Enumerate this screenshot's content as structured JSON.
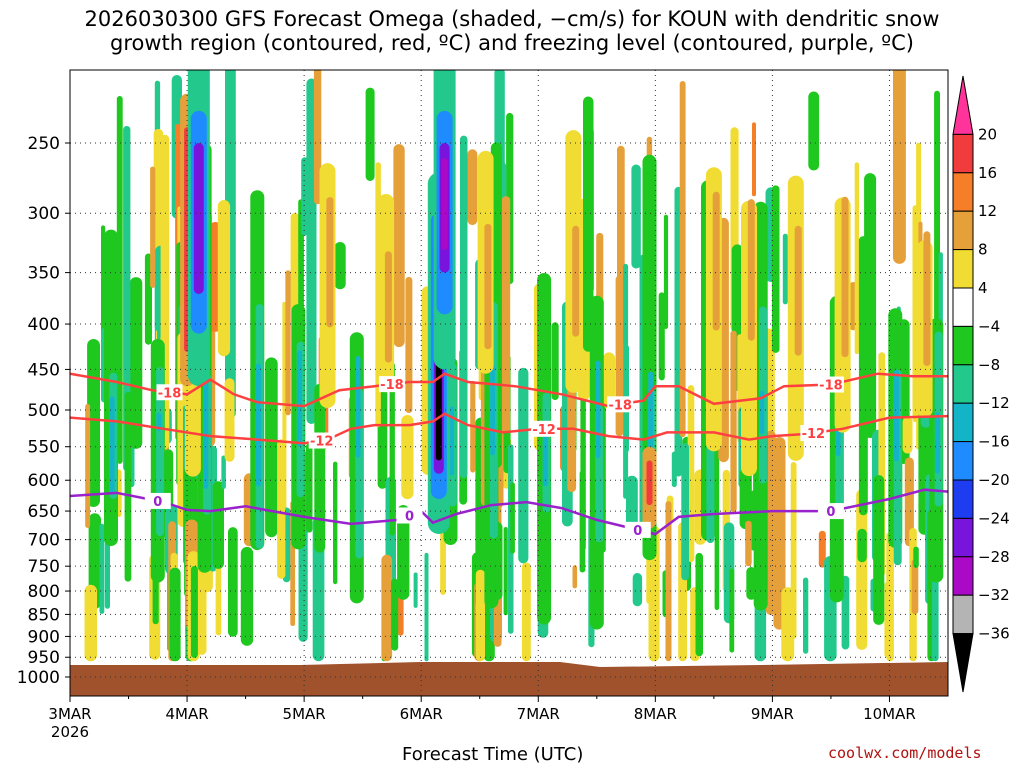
{
  "title_line1": "2026030300 GFS Forecast Omega (shaded, −cm/s) for KOUN with dendritic snow",
  "title_line2": "growth region (contoured, red, ºC) and freezing level (contoured, purple, ºC)",
  "xlabel": "Forecast Time (UTC)",
  "credit": "coolwx.com/models",
  "chart_data": {
    "type": "heatmap",
    "x_tick_labels": [
      "3MAR",
      "4MAR",
      "5MAR",
      "6MAR",
      "7MAR",
      "8MAR",
      "9MAR",
      "10MAR"
    ],
    "x_tick_year": "2026",
    "x_range_days": [
      0,
      7.5
    ],
    "y_scale": "log-pressure",
    "y_range_hPa": [
      1000,
      200
    ],
    "y_tick_labels": [
      "250",
      "300",
      "350",
      "400",
      "450",
      "500",
      "550",
      "600",
      "650",
      "700",
      "750",
      "800",
      "850",
      "900",
      "950",
      "1000"
    ],
    "y_ticks_hPa": [
      250,
      300,
      350,
      400,
      450,
      500,
      550,
      600,
      650,
      700,
      750,
      800,
      850,
      900,
      950,
      1000
    ],
    "grid": true,
    "terrain_color": "#a0522d",
    "colorbar": {
      "labels": [
        "20",
        "16",
        "12",
        "8",
        "4",
        "−4",
        "−8",
        "−12",
        "−16",
        "−20",
        "−24",
        "−28",
        "−32",
        "−36"
      ],
      "colors": [
        "#ff3399",
        "#f03c3c",
        "#f57f28",
        "#e6a03a",
        "#f0dc32",
        "#ffffff",
        "#1ec81e",
        "#23c88c",
        "#14b4c8",
        "#1e8cff",
        "#1e3cf0",
        "#7814dc",
        "#aa0ac8",
        "#b4b4b4",
        "#000000"
      ]
    },
    "contour_dgz_minus18": {
      "label": "−18",
      "color": "#ff4040",
      "label_text": "-18",
      "x_days": [
        0,
        0.4,
        0.7,
        1.0,
        1.2,
        1.4,
        1.6,
        2.0,
        2.3,
        2.6,
        2.9,
        3.1,
        3.2,
        3.4,
        3.8,
        4.2,
        4.6,
        4.9,
        5.0,
        5.2,
        5.5,
        5.9,
        6.1,
        6.5,
        6.9,
        7.2,
        7.5
      ],
      "p_hPa": [
        455,
        465,
        475,
        480,
        462,
        480,
        490,
        495,
        475,
        470,
        465,
        465,
        455,
        465,
        470,
        480,
        495,
        488,
        470,
        470,
        492,
        485,
        470,
        468,
        455,
        458,
        458
      ]
    },
    "contour_dgz_minus12": {
      "label": "−12",
      "color": "#ff4040",
      "label_text": "-12",
      "x_days": [
        0,
        0.4,
        0.8,
        1.2,
        1.6,
        2.0,
        2.2,
        2.4,
        2.6,
        2.9,
        3.1,
        3.2,
        3.4,
        3.7,
        4.0,
        4.3,
        4.6,
        4.9,
        5.1,
        5.5,
        5.8,
        6.0,
        6.3,
        6.6,
        7.0,
        7.5
      ],
      "p_hPa": [
        510,
        515,
        525,
        535,
        540,
        545,
        540,
        525,
        520,
        520,
        515,
        505,
        520,
        530,
        525,
        525,
        535,
        540,
        530,
        530,
        540,
        535,
        532,
        525,
        510,
        508
      ]
    },
    "contour_freezing": {
      "label": "0",
      "color": "#9922cc",
      "label_text": "0",
      "x_days": [
        0,
        0.4,
        0.8,
        1.0,
        1.2,
        1.5,
        2.0,
        2.4,
        2.8,
        3.0,
        3.1,
        3.3,
        3.6,
        3.9,
        4.2,
        4.5,
        4.8,
        5.0,
        5.2,
        5.5,
        6.0,
        6.5,
        7.0,
        7.3,
        7.5
      ],
      "p_hPa": [
        625,
        620,
        635,
        648,
        650,
        642,
        660,
        672,
        665,
        650,
        670,
        655,
        640,
        635,
        645,
        665,
        680,
        690,
        660,
        655,
        650,
        650,
        630,
        615,
        618
      ]
    },
    "omega_features": [
      {
        "x_day": 1.0,
        "p_top": 240,
        "p_bot": 430,
        "value": 18
      },
      {
        "x_day": 1.1,
        "p_top": 260,
        "p_bot": 350,
        "value": -26
      },
      {
        "x_day": 3.15,
        "p_top": 330,
        "p_bot": 570,
        "value": -36
      },
      {
        "x_day": 3.2,
        "p_top": 260,
        "p_bot": 330,
        "value": -28
      },
      {
        "x_day": 4.95,
        "p_top": 570,
        "p_bot": 640,
        "value": 18
      }
    ]
  }
}
